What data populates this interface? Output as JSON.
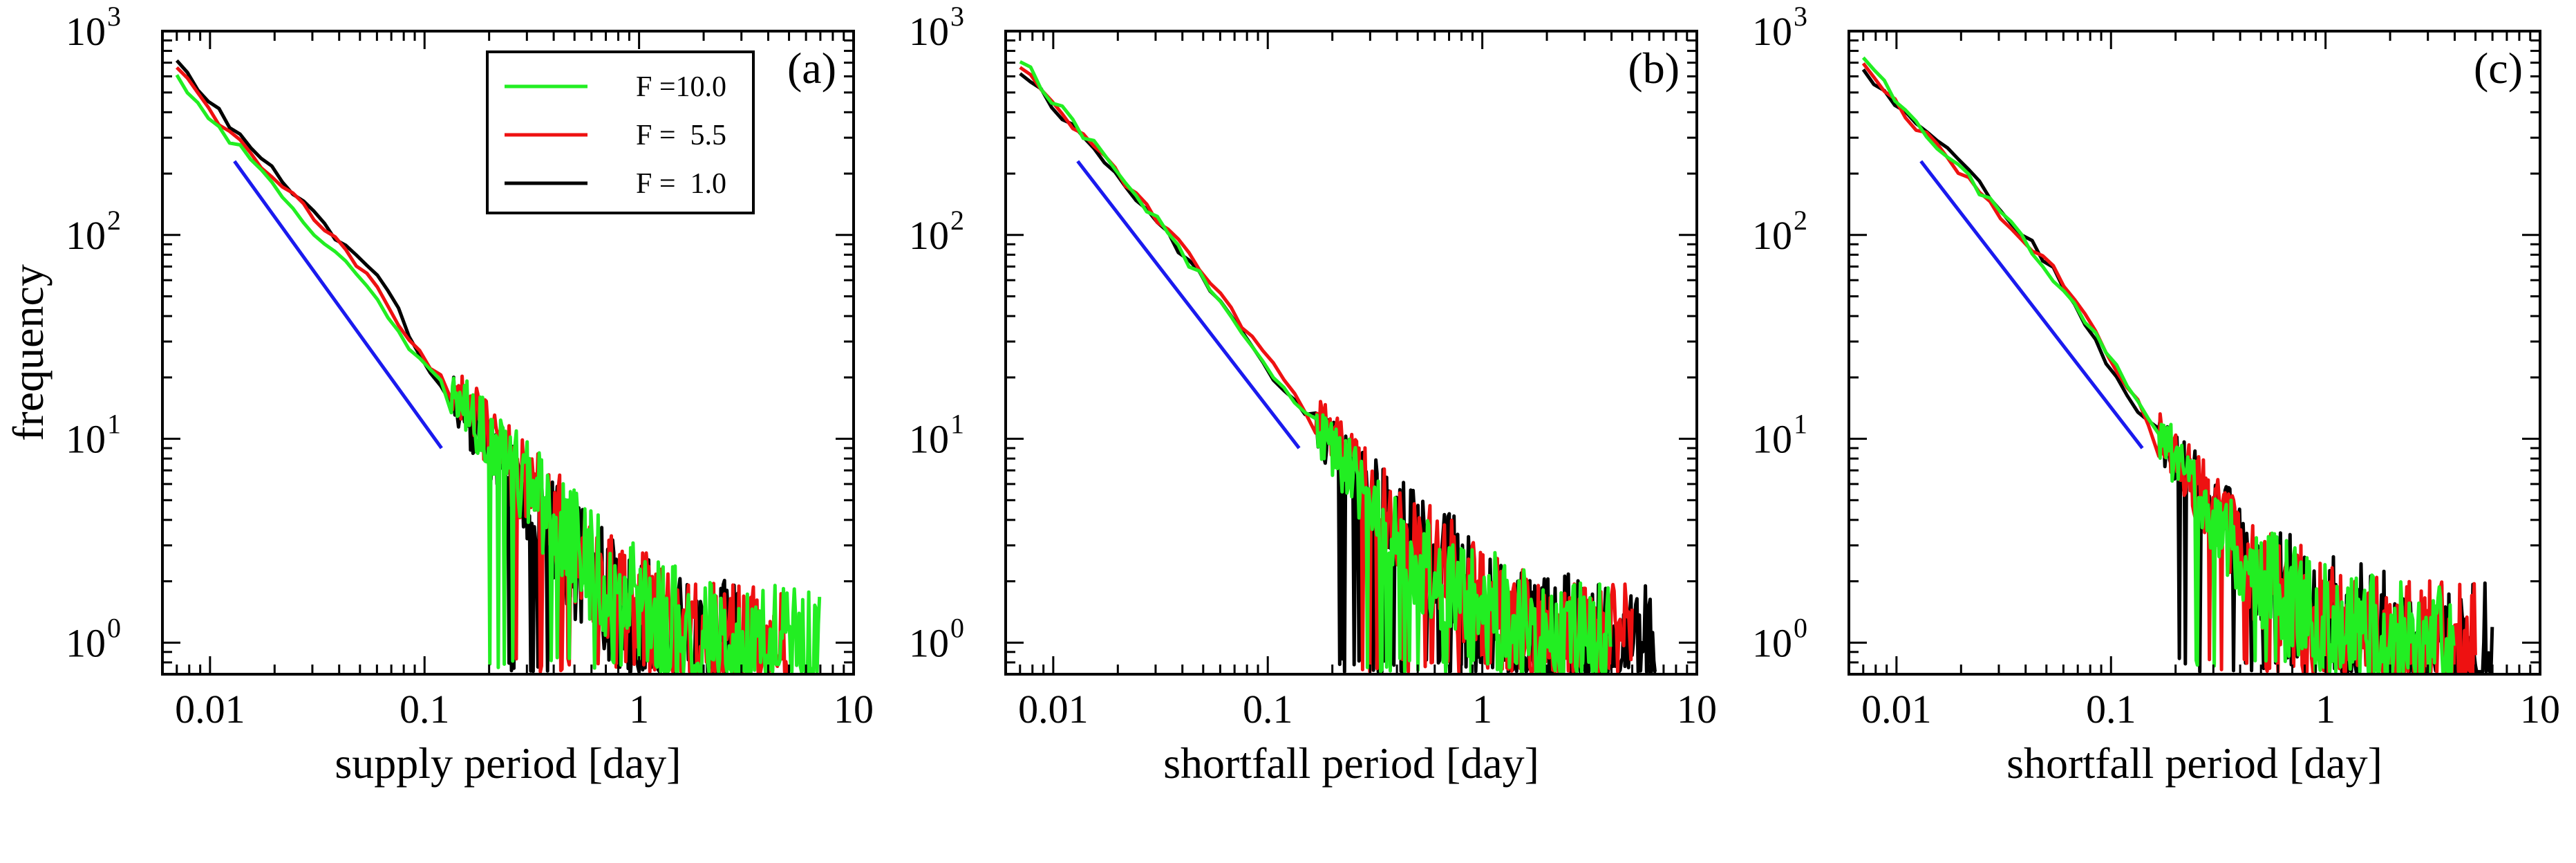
{
  "colors": {
    "green": "#22ee22",
    "red": "#ee1111",
    "black": "#000000",
    "blue": "#1a1aee",
    "frame": "#000000"
  },
  "chart_data": [
    {
      "type": "line",
      "scale": "log-log",
      "panel_label": "(a)",
      "xlabel": "supply period  [day]",
      "ylabel": "frequency",
      "xlim": [
        0.006,
        10
      ],
      "ylim": [
        0.7,
        1000
      ],
      "xticks": [
        "0.01",
        "0.1",
        "1",
        "10"
      ],
      "yticks": [
        {
          "base": "10",
          "exp": "0"
        },
        {
          "base": "10",
          "exp": "1"
        },
        {
          "base": "10",
          "exp": "2"
        },
        {
          "base": "10",
          "exp": "3"
        }
      ],
      "legend": {
        "position": "top-left",
        "entries": [
          {
            "label": "F =10.0",
            "color": "green"
          },
          {
            "label": "F =  5.5",
            "color": "red"
          },
          {
            "label": "F =  1.0",
            "color": "black"
          }
        ]
      },
      "reference_line": {
        "color": "blue",
        "x": [
          0.013,
          0.12
        ],
        "y": [
          230,
          9
        ]
      },
      "series": [
        {
          "name": "F = 10.0",
          "color": "green",
          "trend_x": [
            0.007,
            0.01,
            0.02,
            0.05,
            0.1,
            0.15,
            0.2,
            0.3,
            0.5,
            1,
            2,
            7
          ],
          "trend_y": [
            600,
            380,
            170,
            60,
            22,
            15,
            10,
            6,
            3,
            1.5,
            1,
            1
          ]
        },
        {
          "name": "F = 5.5",
          "color": "red",
          "trend_x": [
            0.007,
            0.01,
            0.02,
            0.05,
            0.1,
            0.15,
            0.2,
            0.3,
            0.5,
            1,
            2,
            5
          ],
          "trend_y": [
            650,
            400,
            190,
            70,
            24,
            16,
            10,
            6,
            3,
            1.5,
            1,
            1
          ]
        },
        {
          "name": "F = 1.0",
          "color": "black",
          "trend_x": [
            0.007,
            0.01,
            0.02,
            0.05,
            0.07,
            0.1,
            0.15,
            0.2,
            0.3,
            0.5,
            1,
            3
          ],
          "trend_y": [
            700,
            450,
            200,
            75,
            50,
            22,
            14,
            9,
            5,
            2.5,
            1.3,
            1
          ]
        }
      ]
    },
    {
      "type": "line",
      "scale": "log-log",
      "panel_label": "(b)",
      "xlabel": "shortfall period  [day]",
      "ylabel": "",
      "xlim": [
        0.006,
        10
      ],
      "ylim": [
        0.7,
        1000
      ],
      "xticks": [
        "0.01",
        "0.1",
        "1",
        "10"
      ],
      "yticks": [
        {
          "base": "10",
          "exp": "0"
        },
        {
          "base": "10",
          "exp": "1"
        },
        {
          "base": "10",
          "exp": "2"
        },
        {
          "base": "10",
          "exp": "3"
        }
      ],
      "reference_line": {
        "color": "blue",
        "x": [
          0.013,
          0.14
        ],
        "y": [
          230,
          9
        ]
      },
      "series": [
        {
          "name": "F = 10.0",
          "color": "green",
          "trend_x": [
            0.007,
            0.01,
            0.02,
            0.05,
            0.1,
            0.15,
            0.2,
            0.3,
            0.5,
            1,
            2,
            4
          ],
          "trend_y": [
            750,
            450,
            210,
            60,
            22,
            13,
            9,
            5,
            2.5,
            1.5,
            1,
            1
          ]
        },
        {
          "name": "F = 5.5",
          "color": "red",
          "trend_x": [
            0.007,
            0.01,
            0.02,
            0.05,
            0.1,
            0.15,
            0.2,
            0.3,
            0.5,
            1,
            2,
            5
          ],
          "trend_y": [
            700,
            430,
            200,
            65,
            25,
            14,
            10,
            6,
            3,
            1.5,
            1,
            1
          ]
        },
        {
          "name": "F = 1.0",
          "color": "black",
          "trend_x": [
            0.007,
            0.01,
            0.02,
            0.05,
            0.1,
            0.15,
            0.2,
            0.3,
            0.5,
            1,
            2,
            6.5
          ],
          "trend_y": [
            650,
            420,
            200,
            60,
            22,
            13,
            9,
            5.5,
            3,
            1.6,
            1.1,
            1
          ]
        }
      ]
    },
    {
      "type": "line",
      "scale": "log-log",
      "panel_label": "(c)",
      "xlabel": "shortfall period  [day]",
      "ylabel": "",
      "xlim": [
        0.006,
        10
      ],
      "ylim": [
        0.7,
        1000
      ],
      "xticks": [
        "0.01",
        "0.1",
        "1",
        "10"
      ],
      "yticks": [
        {
          "base": "10",
          "exp": "0"
        },
        {
          "base": "10",
          "exp": "1"
        },
        {
          "base": "10",
          "exp": "2"
        },
        {
          "base": "10",
          "exp": "3"
        }
      ],
      "reference_line": {
        "color": "blue",
        "x": [
          0.013,
          0.14
        ],
        "y": [
          230,
          9
        ]
      },
      "series": [
        {
          "name": "F = 10.0",
          "color": "green",
          "trend_x": [
            0.007,
            0.01,
            0.02,
            0.05,
            0.1,
            0.15,
            0.2,
            0.3,
            0.5,
            1,
            2,
            4
          ],
          "trend_y": [
            750,
            460,
            210,
            70,
            25,
            12,
            8,
            4,
            2,
            1.3,
            1,
            1
          ]
        },
        {
          "name": "F = 5.5",
          "color": "red",
          "trend_x": [
            0.007,
            0.01,
            0.02,
            0.05,
            0.1,
            0.15,
            0.2,
            0.3,
            0.5,
            1,
            2,
            5
          ],
          "trend_y": [
            700,
            440,
            200,
            75,
            25,
            12,
            8,
            4.5,
            2,
            1.3,
            1,
            1
          ]
        },
        {
          "name": "F = 1.0",
          "color": "black",
          "trend_x": [
            0.007,
            0.01,
            0.02,
            0.05,
            0.1,
            0.15,
            0.2,
            0.3,
            0.5,
            1,
            2,
            6
          ],
          "trend_y": [
            650,
            430,
            220,
            75,
            22,
            12,
            8,
            4.5,
            2.2,
            1.4,
            1.1,
            1
          ]
        }
      ]
    }
  ]
}
